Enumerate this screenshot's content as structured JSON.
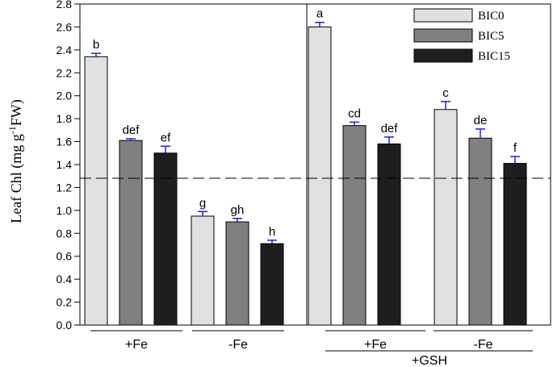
{
  "chart_data": {
    "type": "bar",
    "ylabel_parts": [
      "Leaf Chl (mg g",
      "-1",
      "FW)"
    ],
    "ylim": [
      0,
      2.8
    ],
    "yticks": [
      "0.0",
      "0.2",
      "0.4",
      "0.6",
      "0.8",
      "1.0",
      "1.2",
      "1.4",
      "1.6",
      "1.8",
      "2.0",
      "2.2",
      "2.4",
      "2.6",
      "2.8"
    ],
    "reference_line": 1.28,
    "legend_position": "top-right",
    "series": [
      {
        "name": "BIC0",
        "color": "#e0e0e0"
      },
      {
        "name": "BIC5",
        "color": "#808080"
      },
      {
        "name": "BIC15",
        "color": "#1e1e1e"
      }
    ],
    "groups": [
      {
        "label": "+Fe",
        "panel": "left",
        "values": [
          2.34,
          1.61,
          1.5
        ],
        "errors": [
          0.03,
          0.015,
          0.06
        ],
        "letters": [
          "b",
          "def",
          "ef"
        ]
      },
      {
        "label": "-Fe",
        "panel": "left",
        "values": [
          0.95,
          0.9,
          0.71
        ],
        "errors": [
          0.04,
          0.03,
          0.03
        ],
        "letters": [
          "g",
          "gh",
          "h"
        ]
      },
      {
        "label": "+Fe",
        "panel": "right",
        "values": [
          2.6,
          1.74,
          1.58
        ],
        "errors": [
          0.04,
          0.03,
          0.06
        ],
        "letters": [
          "a",
          "cd",
          "def"
        ]
      },
      {
        "label": "-Fe",
        "panel": "right",
        "values": [
          1.88,
          1.63,
          1.41
        ],
        "errors": [
          0.07,
          0.08,
          0.06
        ],
        "letters": [
          "c",
          "de",
          "f"
        ]
      }
    ],
    "panel_labels": {
      "right": "+GSH"
    },
    "error_bar_color": "#2222cc"
  }
}
